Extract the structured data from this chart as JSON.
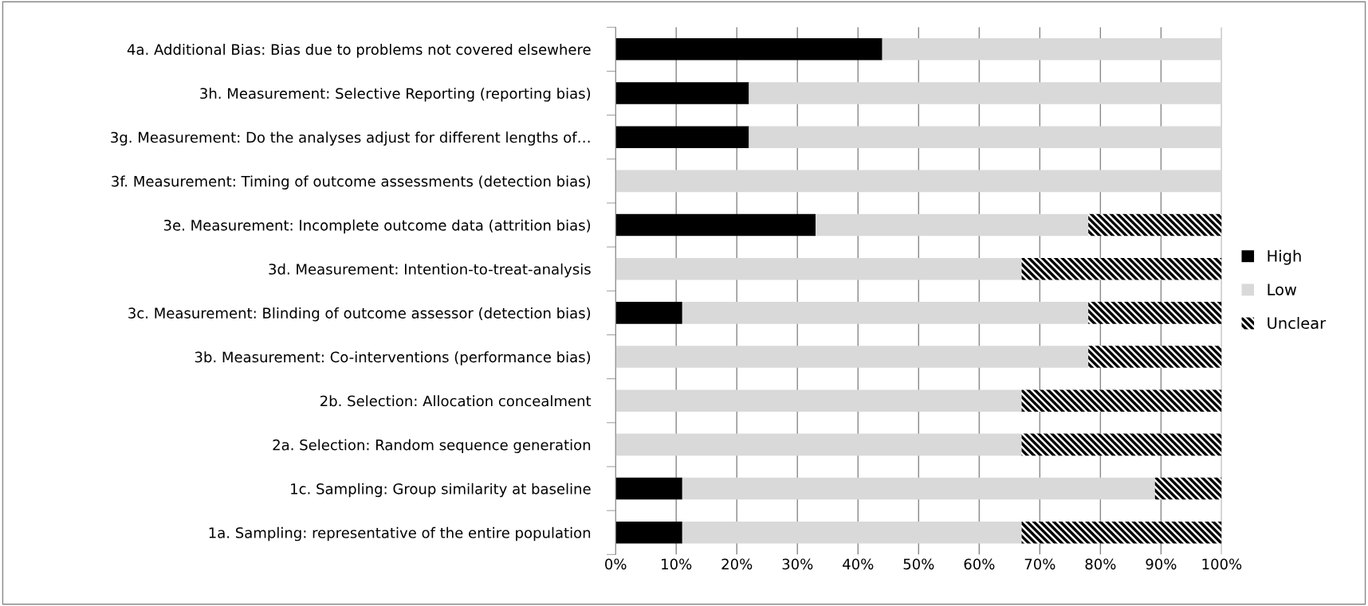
{
  "chart_data": {
    "type": "bar",
    "orientation": "horizontal",
    "stacked": true,
    "categories": [
      "4a. Additional Bias: Bias due to problems not covered elsewhere",
      "3h. Measurement: Selective Reporting (reporting bias)",
      "3g. Measurement: Do the analyses adjust for different lengths of…",
      "3f. Measurement: Timing of outcome assessments (detection bias)",
      "3e. Measurement: Incomplete outcome data (attrition bias)",
      "3d. Measurement: Intention-to-treat-analysis",
      "3c. Measurement: Blinding of outcome assessor (detection bias)",
      "3b. Measurement: Co-interventions (performance bias)",
      "2b. Selection: Allocation concealment",
      "2a. Selection: Random sequence generation",
      "1c. Sampling: Group similarity at baseline",
      "1a. Sampling: representative of the entire population"
    ],
    "series": [
      {
        "name": "High",
        "color": "#000000",
        "values": [
          44,
          22,
          22,
          0,
          33,
          0,
          11,
          0,
          0,
          0,
          11,
          11
        ]
      },
      {
        "name": "Low",
        "color": "#d9d9d9",
        "values": [
          56,
          78,
          78,
          100,
          45,
          67,
          67,
          78,
          67,
          67,
          78,
          56
        ]
      },
      {
        "name": "Unclear",
        "color": "#000000",
        "values": [
          0,
          0,
          0,
          0,
          22,
          33,
          22,
          22,
          33,
          33,
          11,
          33
        ]
      }
    ],
    "xlim": [
      0,
      100
    ],
    "xticks": [
      {
        "value": 0,
        "label": "0%"
      },
      {
        "value": 10,
        "label": "10%"
      },
      {
        "value": 20,
        "label": "20%"
      },
      {
        "value": 30,
        "label": "30%"
      },
      {
        "value": 40,
        "label": "40%"
      },
      {
        "value": 50,
        "label": "50%"
      },
      {
        "value": 60,
        "label": "60%"
      },
      {
        "value": 70,
        "label": "70%"
      },
      {
        "value": 80,
        "label": "80%"
      },
      {
        "value": 90,
        "label": "90%"
      },
      {
        "value": 100,
        "label": "100%"
      }
    ],
    "grid": "x",
    "legend": "right"
  }
}
